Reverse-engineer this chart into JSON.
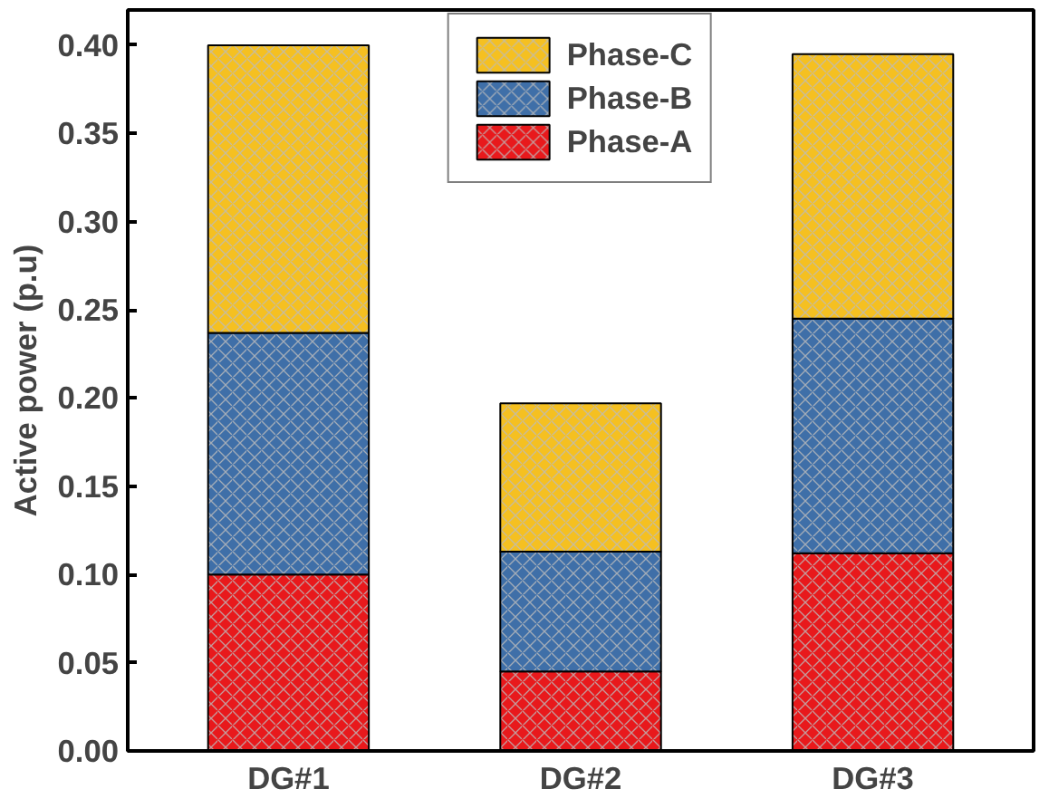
{
  "chart_data": {
    "type": "bar",
    "stacked": true,
    "ylabel": "Active power (p.u)",
    "categories": [
      "DG#1",
      "DG#2",
      "DG#3"
    ],
    "series": [
      {
        "name": "Phase-A",
        "color": "#e8191c",
        "values": [
          0.1,
          0.045,
          0.112
        ]
      },
      {
        "name": "Phase-B",
        "color": "#3f6fa8",
        "values": [
          0.137,
          0.068,
          0.133
        ]
      },
      {
        "name": "Phase-C",
        "color": "#f5c021",
        "values": [
          0.163,
          0.084,
          0.15
        ]
      }
    ],
    "ylim": [
      0,
      0.42
    ],
    "yticks": [
      {
        "value": 0,
        "label": "0.00"
      },
      {
        "value": 0.05,
        "label": "0.05"
      },
      {
        "value": 0.1,
        "label": "0.10"
      },
      {
        "value": 0.15,
        "label": "0.15"
      },
      {
        "value": 0.2,
        "label": "0.20"
      },
      {
        "value": 0.25,
        "label": "0.25"
      },
      {
        "value": 0.3,
        "label": "0.30"
      },
      {
        "value": 0.35,
        "label": "0.35"
      },
      {
        "value": 0.4,
        "label": "0.40"
      }
    ],
    "legend": "top",
    "grid": false
  }
}
